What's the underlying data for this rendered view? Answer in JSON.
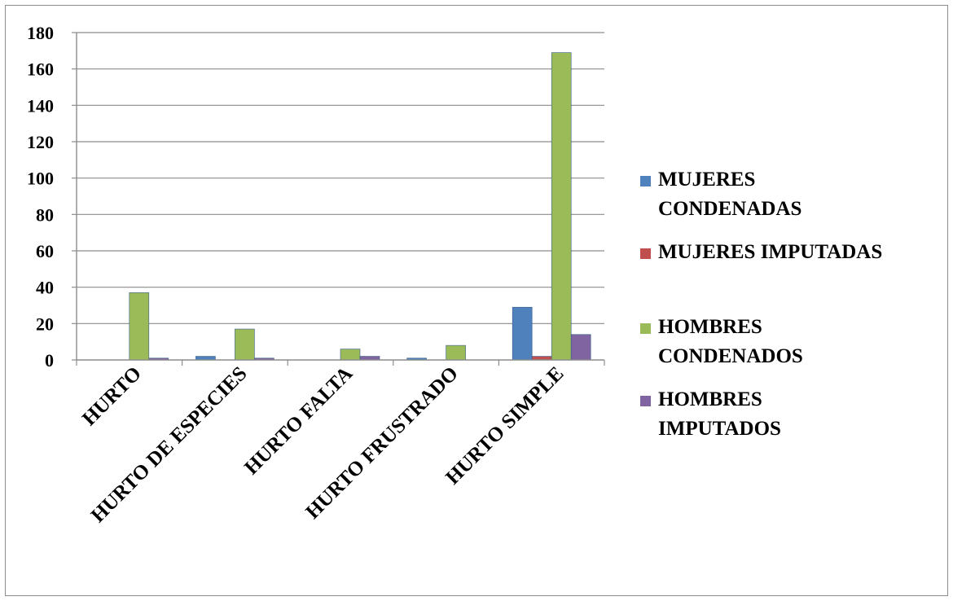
{
  "chart_data": {
    "type": "bar",
    "categories": [
      "HURTO",
      "HURTO DE ESPECIES",
      "HURTO FALTA",
      "HURTO FRUSTRADO",
      "HURTO SIMPLE"
    ],
    "series": [
      {
        "name": "MUJERES CONDENADAS",
        "label_lines": [
          "MUJERES",
          "CONDENADAS"
        ],
        "color": "#4f81bd",
        "values": [
          0,
          2,
          0,
          1,
          29
        ]
      },
      {
        "name": "MUJERES IMPUTADAS",
        "label_lines": [
          "MUJERES IMPUTADAS"
        ],
        "color": "#c0504d",
        "values": [
          0,
          0,
          0,
          0,
          2
        ]
      },
      {
        "name": "HOMBRES CONDENADOS",
        "label_lines": [
          "HOMBRES",
          "CONDENADOS"
        ],
        "color": "#9bbb59",
        "values": [
          37,
          17,
          6,
          8,
          169
        ]
      },
      {
        "name": "HOMBRES IMPUTADOS",
        "label_lines": [
          "HOMBRES",
          "IMPUTADOS"
        ],
        "color": "#8064a2",
        "values": [
          1,
          1,
          2,
          0,
          14
        ]
      }
    ],
    "yticks": [
      0,
      20,
      40,
      60,
      80,
      100,
      120,
      140,
      160,
      180
    ],
    "ylim": [
      0,
      180
    ],
    "grid": true,
    "legend_position": "right"
  }
}
